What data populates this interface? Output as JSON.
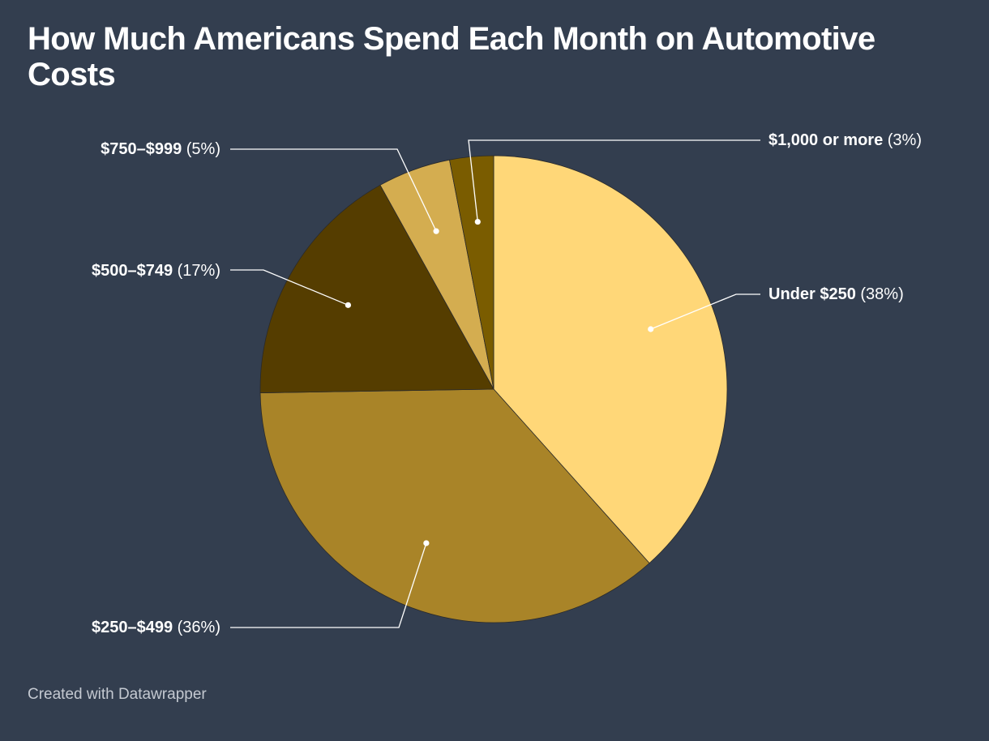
{
  "chart_data": {
    "type": "pie",
    "title": "How Much Americans Spend Each Month on Automotive Costs",
    "slices": [
      {
        "label": "Under $250",
        "value": 38,
        "value_label": "(38%)",
        "color": "#ffd778"
      },
      {
        "label": "$250–$499",
        "value": 36,
        "value_label": "(36%)",
        "color": "#a98428"
      },
      {
        "label": "$500–$749",
        "value": 17,
        "value_label": "(17%)",
        "color": "#553d00"
      },
      {
        "label": "$750–$999",
        "value": 5,
        "value_label": "(5%)",
        "color": "#d4ad50"
      },
      {
        "label": "$1,000 or more",
        "value": 3,
        "value_label": "(3%)",
        "color": "#7a5c00"
      }
    ]
  },
  "footer": {
    "credit": "Created with Datawrapper"
  }
}
